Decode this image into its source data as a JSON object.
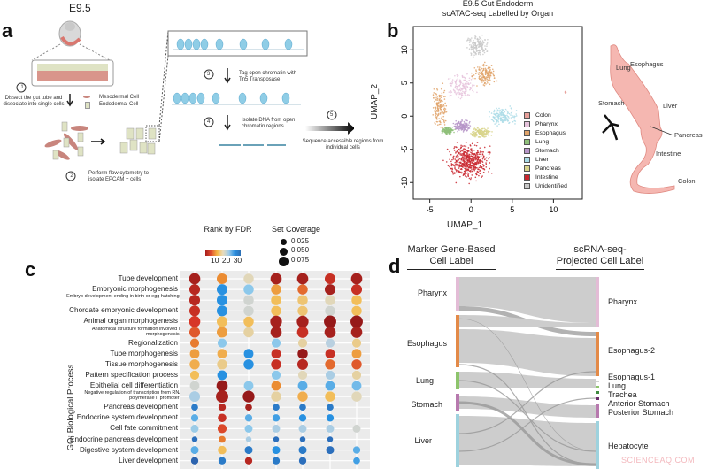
{
  "panel_a": {
    "label": "a",
    "stage": "E9.5",
    "steps": [
      {
        "num": "1",
        "text": "Dissect the gut tube and dissociate into single cells"
      },
      {
        "num": "2",
        "text": "Perform flow cytometry to isolate EPCAM + cells"
      },
      {
        "num": "3",
        "text": "Tag open chromatin with Tn5 Transposase"
      },
      {
        "num": "4",
        "text": "Isolate DNA from open chromatin regions"
      },
      {
        "num": "5",
        "text": "Sequence accessible regions from individual cells"
      }
    ],
    "legend": {
      "mesodermal": "Mesodermal Cell",
      "endodermal": "Endodermal Cell"
    }
  },
  "panel_b": {
    "label": "b",
    "anatomy_labels": [
      "Lung",
      "Esophagus",
      "Stomach",
      "Liver",
      "Pancreas",
      "Intestine",
      "Colon"
    ]
  },
  "panel_c": {
    "label": "c"
  },
  "panel_d": {
    "label": "d"
  },
  "watermark": "SCIENCEAQ.COM",
  "chart_data": [
    {
      "type": "scatter",
      "title": "E9.5 Gut Endoderm",
      "subtitle": "scATAC-seq Labelled by Organ",
      "xlabel": "UMAP_1",
      "ylabel": "UMAP_2",
      "xlim": [
        -7,
        13.5
      ],
      "ylim": [
        -12.5,
        13.5
      ],
      "xticks": [
        "-5",
        "0",
        "5",
        "10"
      ],
      "yticks": [
        "-10",
        "-5",
        "0",
        "5",
        "10"
      ],
      "legend_position": "right-inside",
      "series": [
        {
          "name": "Colon",
          "color": "#e8a09a",
          "center": [
            11.5,
            3.6
          ],
          "spread": [
            0.2,
            0.2
          ]
        },
        {
          "name": "Pharynx",
          "color": "#e6c3dc",
          "center": [
            -1,
            4.5
          ],
          "spread": [
            1.2,
            1.3
          ]
        },
        {
          "name": "Esophagus",
          "color": "#e0a36a",
          "center": [
            -3.8,
            1.5
          ],
          "spread": [
            0.6,
            2.5
          ]
        },
        {
          "name": "Esophagus",
          "color": "#e0a36a",
          "center": [
            1.7,
            6.2
          ],
          "spread": [
            1.0,
            1.2
          ]
        },
        {
          "name": "Lung",
          "color": "#8fc07a",
          "center": [
            -2.8,
            -2.2
          ],
          "spread": [
            0.5,
            0.4
          ]
        },
        {
          "name": "Stomach",
          "color": "#b695c8",
          "center": [
            -1.0,
            -1.5
          ],
          "spread": [
            0.8,
            0.6
          ]
        },
        {
          "name": "Liver",
          "color": "#a9dbe6",
          "center": [
            3.8,
            0
          ],
          "spread": [
            1.2,
            1.0
          ]
        },
        {
          "name": "Pancreas",
          "color": "#d8d38a",
          "center": [
            1.2,
            -2.5
          ],
          "spread": [
            0.9,
            0.5
          ]
        },
        {
          "name": "Intestine",
          "color": "#c9262e",
          "center": [
            -0.2,
            -6.8
          ],
          "spread": [
            1.8,
            2.0
          ]
        },
        {
          "name": "Unidentified",
          "color": "#c8c8c8",
          "center": [
            0.8,
            10.5
          ],
          "spread": [
            1.0,
            1.1
          ]
        }
      ]
    },
    {
      "type": "heatmap",
      "ylabel": "GO: Biological Process",
      "color_legend": {
        "title": "Rank by FDR",
        "ticks": [
          "10",
          "20",
          "30"
        ]
      },
      "size_legend": {
        "title": "Set Coverage",
        "values": [
          "0.025",
          "0.050",
          "0.075"
        ]
      },
      "columns": 7,
      "rows": [
        {
          "term": "Tube development",
          "rank": [
            2,
            10,
            17,
            2,
            2,
            4,
            2
          ],
          "coverage": [
            0.07,
            0.065,
            0.06,
            0.07,
            0.07,
            0.065,
            0.07
          ]
        },
        {
          "term": "Embryonic morphogenesis",
          "rank": [
            3,
            28,
            24,
            11,
            8,
            2,
            4
          ],
          "coverage": [
            0.065,
            0.065,
            0.06,
            0.06,
            0.06,
            0.065,
            0.065
          ]
        },
        {
          "term": "Embryo development ending in birth or egg hatching",
          "rank": [
            3,
            28,
            19,
            13,
            14,
            17,
            13
          ],
          "coverage": [
            0.065,
            0.065,
            0.06,
            0.06,
            0.06,
            0.06,
            0.06
          ]
        },
        {
          "term": "Chordate embryonic development",
          "rank": [
            4,
            28,
            19,
            13,
            14,
            19,
            13
          ],
          "coverage": [
            0.065,
            0.065,
            0.06,
            0.06,
            0.06,
            0.06,
            0.06
          ]
        },
        {
          "term": "Animal organ morphogenesis",
          "rank": [
            5,
            13,
            13,
            2,
            2,
            1,
            1
          ],
          "coverage": [
            0.07,
            0.065,
            0.06,
            0.075,
            0.075,
            0.08,
            0.08
          ]
        },
        {
          "term": "Anatomical structure formation involved in morphogenesis",
          "rank": [
            7,
            11,
            16,
            2,
            4,
            2,
            2
          ],
          "coverage": [
            0.065,
            0.065,
            0.06,
            0.07,
            0.07,
            0.07,
            0.07
          ]
        },
        {
          "term": "Regionalization",
          "rank": [
            9,
            24,
            null,
            24,
            16,
            21,
            15
          ],
          "coverage": [
            0.05,
            0.05,
            null,
            0.05,
            0.05,
            0.05,
            0.05
          ]
        },
        {
          "term": "Tube morphogenesis",
          "rank": [
            11,
            12,
            28,
            4,
            1,
            4,
            11
          ],
          "coverage": [
            0.055,
            0.055,
            0.055,
            0.055,
            0.06,
            0.055,
            0.055
          ]
        },
        {
          "term": "Tissue morphogenesis",
          "rank": [
            12,
            15,
            28,
            4,
            3,
            8,
            7
          ],
          "coverage": [
            0.06,
            0.06,
            0.06,
            0.06,
            0.065,
            0.06,
            0.06
          ]
        },
        {
          "term": "Pattern specification process",
          "rank": [
            13,
            28,
            null,
            24,
            17,
            22,
            16
          ],
          "coverage": [
            0.05,
            0.055,
            null,
            0.05,
            0.05,
            0.05,
            0.05
          ]
        },
        {
          "term": "Epithelial cell differentiation",
          "rank": [
            19,
            1,
            24,
            10,
            26,
            26,
            25
          ],
          "coverage": [
            0.055,
            0.07,
            0.055,
            0.055,
            0.055,
            0.055,
            0.055
          ]
        },
        {
          "term": "Negative regulation of transcription from RNA polymerase II promoter",
          "rank": [
            22,
            2,
            1,
            16,
            12,
            13,
            17
          ],
          "coverage": [
            0.065,
            0.08,
            0.075,
            0.06,
            0.06,
            0.06,
            0.06
          ]
        },
        {
          "term": "Pancreas development",
          "rank": [
            30,
            3,
            2,
            30,
            30,
            30,
            null
          ],
          "coverage": [
            0.03,
            0.035,
            0.03,
            0.03,
            0.03,
            0.03,
            null
          ]
        },
        {
          "term": "Endocrine system development",
          "rank": [
            26,
            4,
            26,
            27,
            28,
            28,
            null
          ],
          "coverage": [
            0.035,
            0.045,
            0.035,
            0.035,
            0.035,
            0.035,
            null
          ]
        },
        {
          "term": "Cell fate commitment",
          "rank": [
            23,
            6,
            24,
            22,
            22,
            22,
            19
          ],
          "coverage": [
            0.04,
            0.05,
            0.04,
            0.04,
            0.04,
            0.04,
            0.04
          ]
        },
        {
          "term": "Endocrine pancreas development",
          "rank": [
            31,
            9,
            22,
            31,
            31,
            31,
            null
          ],
          "coverage": [
            0.02,
            0.03,
            0.02,
            0.02,
            0.02,
            0.02,
            null
          ]
        },
        {
          "term": "Digestive system development",
          "rank": [
            26,
            13,
            30,
            28,
            30,
            31,
            26
          ],
          "coverage": [
            0.04,
            0.045,
            0.04,
            0.04,
            0.04,
            0.04,
            0.035
          ]
        },
        {
          "term": "Liver development",
          "rank": [
            32,
            30,
            3,
            30,
            31,
            null,
            27
          ],
          "coverage": [
            0.035,
            0.035,
            0.035,
            0.035,
            0.035,
            null,
            0.03
          ]
        }
      ]
    },
    {
      "type": "sankey",
      "left_title": "Marker Gene-Based Cell Label",
      "right_title": "scRNA-seq-Projected Cell Label",
      "left_nodes": [
        {
          "name": "Pharynx",
          "color": "#e3bcd6"
        },
        {
          "name": "Esophagus",
          "color": "#e38a48"
        },
        {
          "name": "Lung",
          "color": "#8dc46c"
        },
        {
          "name": "Stomach",
          "color": "#b779ae"
        },
        {
          "name": "Liver",
          "color": "#9ed2de"
        }
      ],
      "right_nodes": [
        {
          "name": "Pharynx",
          "color": "#e3bcd6"
        },
        {
          "name": "Esophagus-2",
          "color": "#e38a48"
        },
        {
          "name": "Esophagus-1",
          "color": "#cfcfcf"
        },
        {
          "name": "Lung",
          "color": "#8dc46c"
        },
        {
          "name": "Trachea",
          "color": "#3e8a3e"
        },
        {
          "name": "Anterior Stomach",
          "color": "#6b2c6b"
        },
        {
          "name": "Posterior Stomach",
          "color": "#b779ae"
        },
        {
          "name": "Hepatocyte",
          "color": "#9ed2de"
        }
      ]
    }
  ]
}
